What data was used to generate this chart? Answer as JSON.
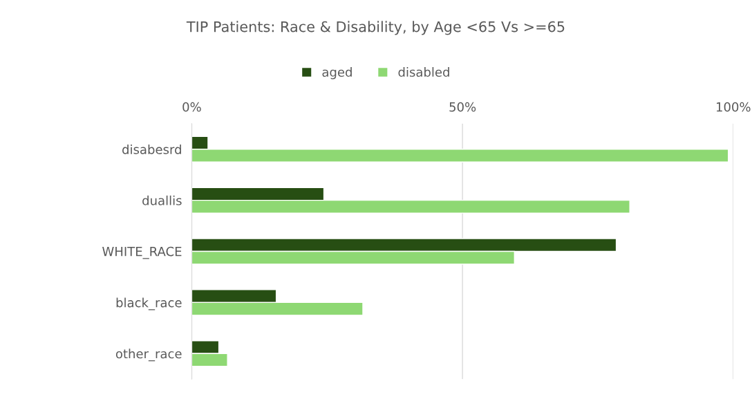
{
  "chart_data": {
    "type": "bar",
    "orientation": "horizontal",
    "title": "TIP Patients: Race & Disability, by Age <65 Vs >=65",
    "categories": [
      "disabesrd",
      "duallis",
      "WHITE_RACE",
      "black_race",
      "other_race"
    ],
    "series": [
      {
        "name": "aged",
        "color": "#274e13",
        "values": [
          3.0,
          24.4,
          78.4,
          15.6,
          5.0
        ]
      },
      {
        "name": "disabled",
        "color": "#8ed873",
        "values": [
          99.1,
          80.9,
          59.6,
          31.6,
          6.6
        ]
      }
    ],
    "xlim": [
      0,
      100
    ],
    "xticks": [
      {
        "value": 0,
        "label": "0%"
      },
      {
        "value": 50,
        "label": "50%"
      },
      {
        "value": 100,
        "label": "100%"
      }
    ],
    "grid": "x",
    "legend": "top"
  }
}
